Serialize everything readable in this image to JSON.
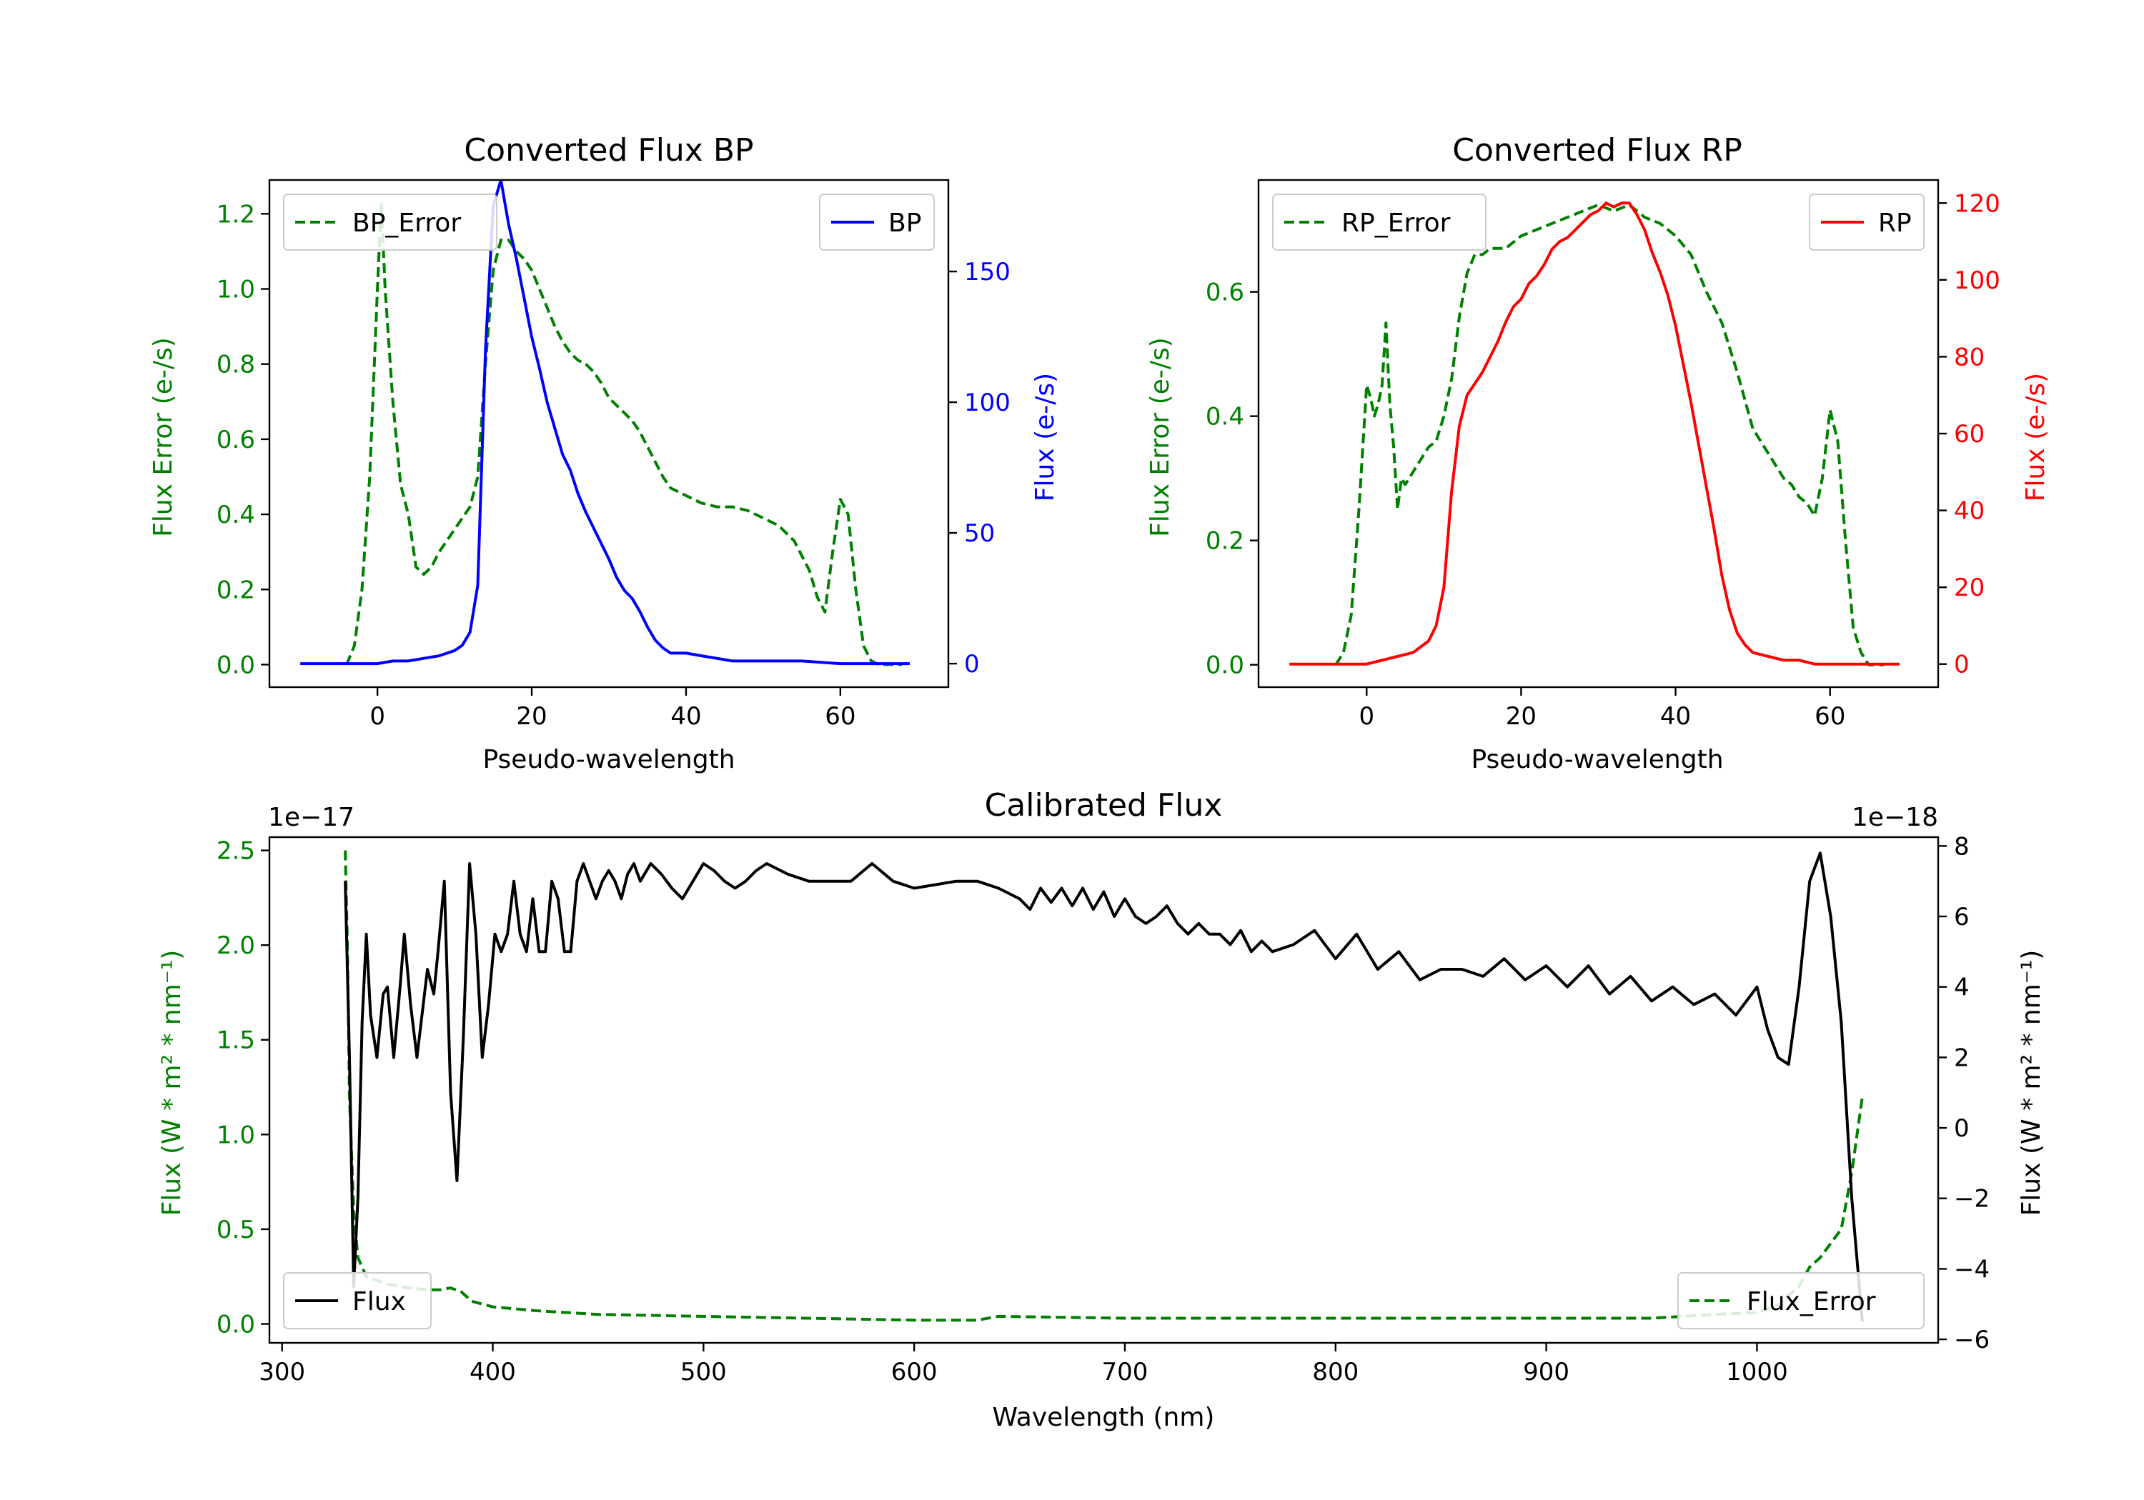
{
  "chart_data": [
    {
      "id": "bp",
      "type": "line",
      "title": "Converted Flux BP",
      "xlabel": "Pseudo-wavelength",
      "xlim": [
        -14,
        74
      ],
      "xticks": [
        0,
        20,
        40,
        60
      ],
      "left_axis": {
        "label": "Flux Error (e-/s)",
        "color": "#008000",
        "ylim": [
          -0.06,
          1.29
        ],
        "ticks": [
          "0.0",
          "0.2",
          "0.4",
          "0.6",
          "0.8",
          "1.0",
          "1.2"
        ],
        "tick_values": [
          0,
          0.2,
          0.4,
          0.6,
          0.8,
          1.0,
          1.2
        ]
      },
      "right_axis": {
        "label": "Flux (e-/s)",
        "color": "#0000ff",
        "ylim": [
          -9,
          185
        ],
        "ticks": [
          "0",
          "50",
          "100",
          "150"
        ],
        "tick_values": [
          0,
          50,
          100,
          150
        ]
      },
      "series": [
        {
          "name": "BP_Error",
          "axis": "left",
          "color": "#008000",
          "style": "dashed",
          "legend": "top-left",
          "x": [
            -4,
            -3,
            -2,
            -1,
            0,
            0.5,
            1,
            2,
            3,
            4,
            5,
            6,
            7,
            8,
            9,
            10,
            11,
            12,
            13,
            14,
            15,
            16,
            17,
            18,
            19,
            20,
            21,
            22,
            23,
            24,
            25,
            26,
            27,
            28,
            29,
            30,
            31,
            32,
            33,
            34,
            35,
            36,
            37,
            38,
            39,
            40,
            42,
            44,
            46,
            48,
            50,
            52,
            53,
            54,
            55,
            56,
            57,
            58,
            59,
            60,
            61,
            62,
            63,
            64,
            65,
            66,
            68
          ],
          "y": [
            0.0,
            0.05,
            0.2,
            0.5,
            1.0,
            1.23,
            1.0,
            0.7,
            0.48,
            0.4,
            0.26,
            0.24,
            0.26,
            0.3,
            0.33,
            0.36,
            0.39,
            0.42,
            0.5,
            0.8,
            1.05,
            1.13,
            1.13,
            1.1,
            1.08,
            1.05,
            1.0,
            0.95,
            0.9,
            0.86,
            0.83,
            0.81,
            0.8,
            0.78,
            0.75,
            0.71,
            0.69,
            0.67,
            0.65,
            0.62,
            0.58,
            0.54,
            0.5,
            0.47,
            0.46,
            0.45,
            0.43,
            0.42,
            0.42,
            0.41,
            0.39,
            0.37,
            0.35,
            0.33,
            0.29,
            0.25,
            0.18,
            0.14,
            0.3,
            0.44,
            0.4,
            0.2,
            0.05,
            0.01,
            0.0,
            0.0,
            0.0
          ]
        },
        {
          "name": "BP",
          "axis": "right",
          "color": "#0000ff",
          "style": "solid",
          "legend": "top-right",
          "x": [
            -10,
            -5,
            -2,
            0,
            2,
            4,
            6,
            8,
            10,
            11,
            12,
            13,
            14,
            15,
            16,
            17,
            18,
            19,
            20,
            21,
            22,
            23,
            24,
            25,
            26,
            27,
            28,
            29,
            30,
            31,
            32,
            33,
            34,
            35,
            36,
            37,
            38,
            39,
            40,
            42,
            44,
            46,
            50,
            55,
            60,
            65,
            69
          ],
          "y": [
            0,
            0,
            0,
            0,
            1,
            1,
            2,
            3,
            5,
            7,
            12,
            30,
            120,
            175,
            185,
            168,
            155,
            140,
            125,
            113,
            100,
            90,
            80,
            74,
            65,
            58,
            52,
            46,
            40,
            33,
            28,
            25,
            20,
            14,
            9,
            6,
            4,
            4,
            4,
            3,
            2,
            1,
            1,
            1,
            0,
            0,
            0
          ]
        }
      ]
    },
    {
      "id": "rp",
      "type": "line",
      "title": "Converted Flux RP",
      "xlabel": "Pseudo-wavelength",
      "xlim": [
        -14,
        74
      ],
      "xticks": [
        0,
        20,
        40,
        60
      ],
      "left_axis": {
        "label": "Flux Error (e-/s)",
        "color": "#008000",
        "ylim": [
          -0.036,
          0.78
        ],
        "ticks": [
          "0.0",
          "0.2",
          "0.4",
          "0.6"
        ],
        "tick_values": [
          0,
          0.2,
          0.4,
          0.6
        ]
      },
      "right_axis": {
        "label": "Flux (e-/s)",
        "color": "#ff0000",
        "ylim": [
          -6,
          126
        ],
        "ticks": [
          "0",
          "20",
          "40",
          "60",
          "80",
          "100",
          "120"
        ],
        "tick_values": [
          0,
          20,
          40,
          60,
          80,
          100,
          120
        ]
      },
      "series": [
        {
          "name": "RP_Error",
          "axis": "left",
          "color": "#008000",
          "style": "dashed",
          "legend": "top-left",
          "x": [
            -4,
            -3,
            -2,
            -1,
            0,
            0.5,
            1,
            1.5,
            2,
            2.5,
            3,
            3.5,
            4,
            4.5,
            5,
            6,
            7,
            8,
            9,
            10,
            11,
            12,
            13,
            14,
            15,
            16,
            18,
            20,
            22,
            24,
            26,
            28,
            30,
            32,
            34,
            36,
            38,
            40,
            42,
            44,
            46,
            48,
            50,
            52,
            54,
            55,
            56,
            57,
            58,
            59,
            60,
            61,
            62,
            63,
            64,
            65,
            67
          ],
          "y": [
            0.0,
            0.02,
            0.08,
            0.25,
            0.45,
            0.43,
            0.4,
            0.42,
            0.45,
            0.55,
            0.42,
            0.35,
            0.25,
            0.3,
            0.29,
            0.31,
            0.33,
            0.35,
            0.36,
            0.4,
            0.46,
            0.56,
            0.63,
            0.66,
            0.66,
            0.67,
            0.67,
            0.69,
            0.7,
            0.71,
            0.72,
            0.73,
            0.74,
            0.73,
            0.74,
            0.72,
            0.71,
            0.69,
            0.66,
            0.6,
            0.55,
            0.47,
            0.38,
            0.34,
            0.3,
            0.29,
            0.27,
            0.26,
            0.24,
            0.3,
            0.41,
            0.36,
            0.2,
            0.06,
            0.02,
            0.0,
            0.0
          ]
        },
        {
          "name": "RP",
          "axis": "right",
          "color": "#ff0000",
          "style": "solid",
          "legend": "top-right",
          "x": [
            -10,
            -5,
            0,
            2,
            4,
            6,
            8,
            9,
            10,
            11,
            12,
            13,
            14,
            15,
            16,
            17,
            18,
            19,
            20,
            21,
            22,
            23,
            24,
            25,
            26,
            27,
            28,
            29,
            30,
            31,
            32,
            33,
            34,
            35,
            36,
            37,
            38,
            39,
            40,
            41,
            42,
            43,
            44,
            45,
            46,
            47,
            48,
            49,
            50,
            52,
            54,
            56,
            58,
            60,
            62,
            64,
            66,
            69
          ],
          "y": [
            0,
            0,
            0,
            1,
            2,
            3,
            6,
            10,
            20,
            45,
            62,
            70,
            73,
            76,
            80,
            84,
            89,
            93,
            95,
            99,
            101,
            104,
            108,
            110,
            111,
            113,
            115,
            117,
            118,
            120,
            119,
            120,
            120,
            117,
            113,
            107,
            102,
            96,
            88,
            78,
            68,
            57,
            46,
            35,
            23,
            14,
            8,
            5,
            3,
            2,
            1,
            1,
            0,
            0,
            0,
            0,
            0,
            0
          ]
        }
      ]
    },
    {
      "id": "cal",
      "type": "line",
      "title": "Calibrated Flux",
      "xlabel": "Wavelength (nm)",
      "xlim": [
        294,
        1086
      ],
      "xticks": [
        300,
        400,
        500,
        600,
        700,
        800,
        900,
        1000
      ],
      "left_axis": {
        "label": "Flux (W * m² * nm⁻¹)",
        "color": "#008000",
        "offset_text": "1e−17",
        "ylim": [
          -0.1,
          2.57
        ],
        "ticks": [
          "0.0",
          "0.5",
          "1.0",
          "1.5",
          "2.0",
          "2.5"
        ],
        "tick_values": [
          0,
          0.5,
          1.0,
          1.5,
          2.0,
          2.5
        ]
      },
      "right_axis": {
        "label": "Flux (W * m² * nm⁻¹)",
        "color": "#000000",
        "offset_text": "1e−18",
        "ylim": [
          -6.1,
          8.25
        ],
        "ticks": [
          "−6",
          "−4",
          "−2",
          "0",
          "2",
          "4",
          "6",
          "8"
        ],
        "tick_values": [
          -6,
          -4,
          -2,
          0,
          2,
          4,
          6,
          8
        ]
      },
      "series": [
        {
          "name": "Flux_Error",
          "axis": "left",
          "color": "#008000",
          "style": "dashed",
          "legend": "bottom-right",
          "x": [
            330,
            331,
            332,
            334,
            336,
            340,
            350,
            360,
            370,
            375,
            380,
            385,
            390,
            400,
            420,
            450,
            500,
            600,
            630,
            640,
            700,
            800,
            900,
            950,
            980,
            1000,
            1010,
            1020,
            1025,
            1030,
            1040,
            1045,
            1050
          ],
          "y": [
            2.5,
            2.0,
            1.2,
            0.6,
            0.35,
            0.25,
            0.21,
            0.19,
            0.18,
            0.18,
            0.19,
            0.17,
            0.12,
            0.09,
            0.07,
            0.05,
            0.04,
            0.02,
            0.02,
            0.04,
            0.03,
            0.03,
            0.03,
            0.03,
            0.05,
            0.06,
            0.1,
            0.2,
            0.3,
            0.35,
            0.5,
            0.8,
            1.2
          ]
        },
        {
          "name": "Flux",
          "axis": "right",
          "color": "#000000",
          "style": "solid",
          "legend": "bottom-left",
          "x": [
            330,
            332,
            334,
            336,
            338,
            340,
            342,
            345,
            348,
            350,
            353,
            356,
            358,
            361,
            364,
            366,
            369,
            372,
            374,
            377,
            380,
            383,
            386,
            389,
            392,
            395,
            398,
            401,
            404,
            407,
            410,
            413,
            416,
            419,
            422,
            425,
            428,
            431,
            434,
            437,
            440,
            443,
            446,
            449,
            452,
            455,
            458,
            461,
            464,
            467,
            470,
            475,
            480,
            485,
            490,
            495,
            500,
            505,
            510,
            515,
            520,
            525,
            530,
            540,
            550,
            560,
            570,
            580,
            590,
            600,
            610,
            620,
            630,
            640,
            650,
            655,
            660,
            665,
            670,
            675,
            680,
            685,
            690,
            695,
            700,
            705,
            710,
            715,
            720,
            725,
            730,
            735,
            740,
            745,
            750,
            755,
            760,
            765,
            770,
            780,
            790,
            800,
            810,
            820,
            830,
            840,
            850,
            860,
            870,
            880,
            890,
            900,
            910,
            920,
            930,
            940,
            950,
            960,
            970,
            980,
            990,
            1000,
            1005,
            1010,
            1015,
            1020,
            1025,
            1030,
            1035,
            1040,
            1045,
            1050
          ],
          "y": [
            7.0,
            2.0,
            -4.5,
            -2.0,
            3.0,
            5.5,
            3.2,
            2.0,
            3.8,
            4.0,
            2.0,
            4.0,
            5.5,
            3.5,
            2.0,
            3.0,
            4.5,
            3.8,
            5.0,
            7.0,
            1.0,
            -1.5,
            2.5,
            7.5,
            5.5,
            2.0,
            3.5,
            5.5,
            5.0,
            5.5,
            7.0,
            5.5,
            5.0,
            6.5,
            5.0,
            5.0,
            7.0,
            6.5,
            5.0,
            5.0,
            7.0,
            7.5,
            7.0,
            6.5,
            7.0,
            7.3,
            7.0,
            6.5,
            7.2,
            7.5,
            7.0,
            7.5,
            7.2,
            6.8,
            6.5,
            7.0,
            7.5,
            7.3,
            7.0,
            6.8,
            7.0,
            7.3,
            7.5,
            7.2,
            7.0,
            7.0,
            7.0,
            7.5,
            7.0,
            6.8,
            6.9,
            7.0,
            7.0,
            6.8,
            6.5,
            6.2,
            6.8,
            6.4,
            6.8,
            6.3,
            6.8,
            6.2,
            6.7,
            6.0,
            6.5,
            6.0,
            5.8,
            6.0,
            6.3,
            5.8,
            5.5,
            5.8,
            5.5,
            5.5,
            5.2,
            5.6,
            5.0,
            5.3,
            5.0,
            5.2,
            5.6,
            4.8,
            5.5,
            4.5,
            5.0,
            4.2,
            4.5,
            4.5,
            4.3,
            4.8,
            4.2,
            4.6,
            4.0,
            4.6,
            3.8,
            4.3,
            3.6,
            4.0,
            3.5,
            3.8,
            3.2,
            4.0,
            2.8,
            2.0,
            1.8,
            4.0,
            7.0,
            7.8,
            6.0,
            3.0,
            -2.0,
            -5.5
          ]
        }
      ]
    }
  ]
}
